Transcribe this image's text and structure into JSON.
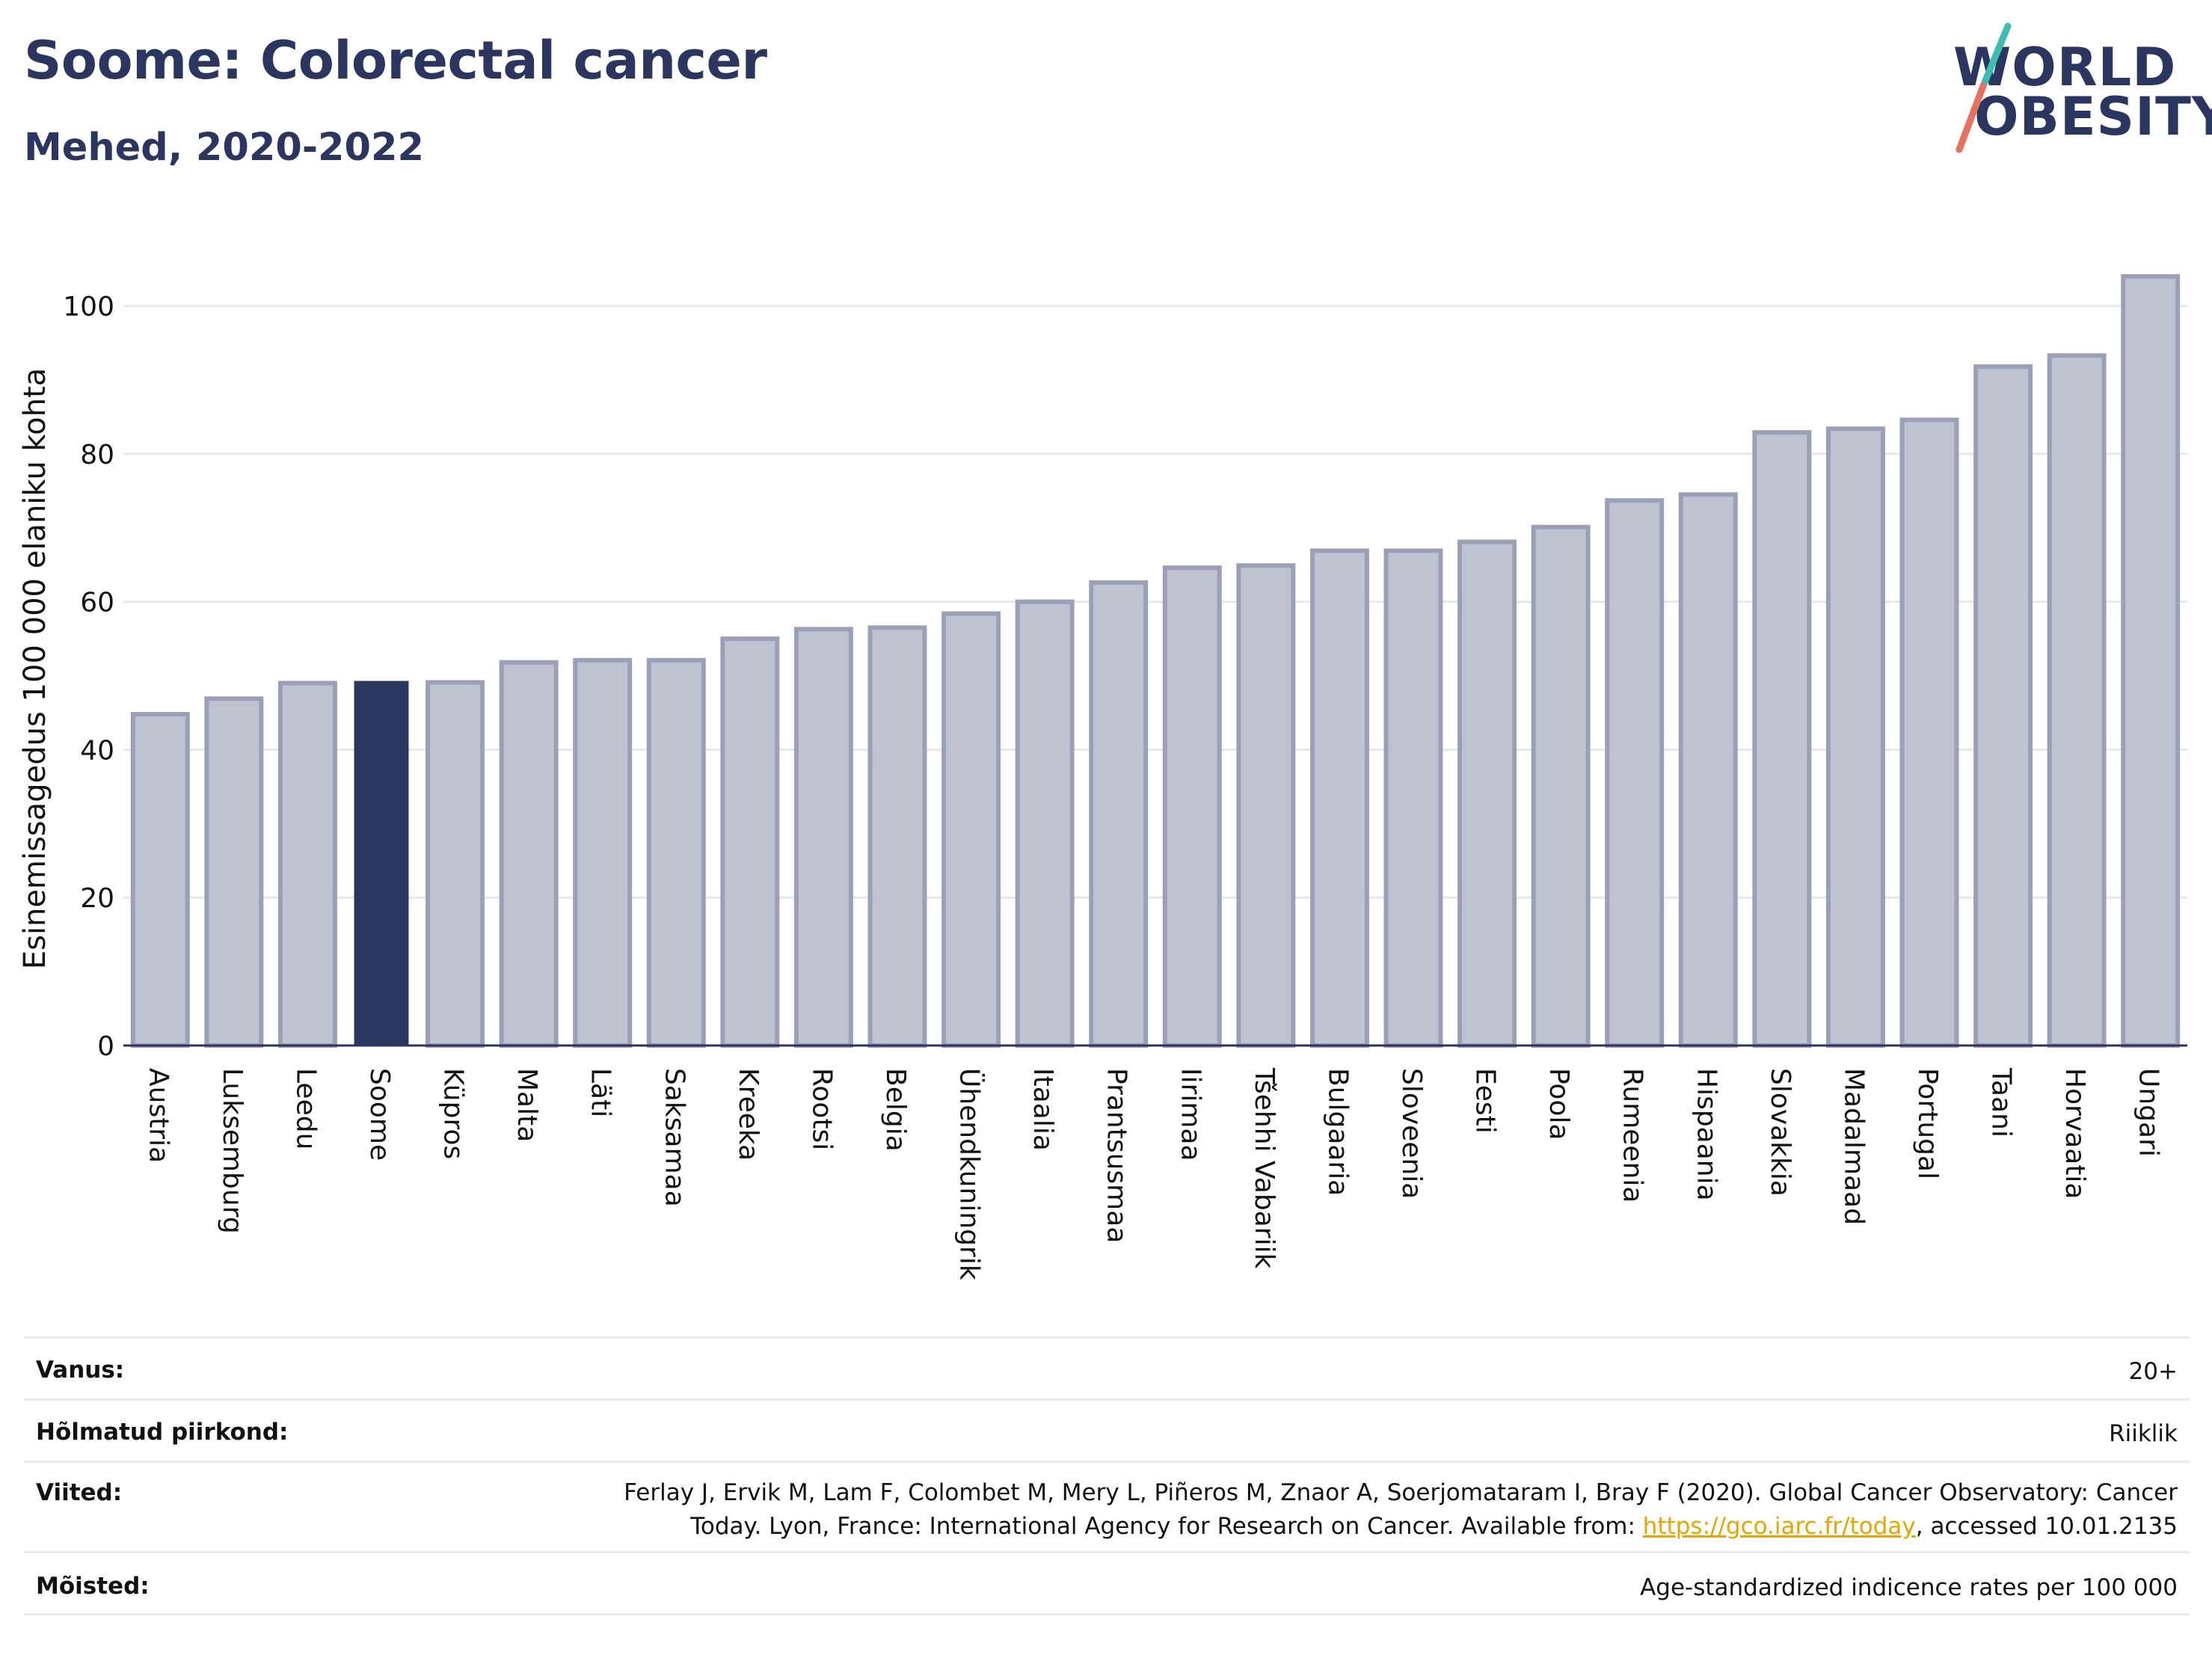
{
  "header": {
    "title": "Soome: Colorectal cancer",
    "subtitle": "Mehed, 2020-2022"
  },
  "logo": {
    "line1": "WORLD",
    "line2": "OBESITY"
  },
  "chart_data": {
    "type": "bar",
    "ylabel": "Esinemissagedus 100 000 elaniku kohta",
    "ylim": [
      0,
      108
    ],
    "yticks": [
      0,
      20,
      40,
      60,
      80,
      100
    ],
    "grid": true,
    "highlight": "Soome",
    "colors": {
      "bar": "#bfc3d0",
      "bar_edge": "#9aa0b8",
      "highlight": "#2a3560",
      "grid": "#e6e8ef",
      "axis": "#2a3560"
    },
    "categories": [
      "Austria",
      "Luksemburg",
      "Leedu",
      "Soome",
      "Küpros",
      "Malta",
      "Läti",
      "Saksamaa",
      "Kreeka",
      "Rootsi",
      "Belgia",
      "Ühendkuningrik",
      "Itaalia",
      "Prantsusmaa",
      "Iirimaa",
      "Tšehhi Vabariik",
      "Bulgaaria",
      "Sloveenia",
      "Eesti",
      "Poola",
      "Rumeenia",
      "Hispaania",
      "Slovakkia",
      "Madalmaad",
      "Portugal",
      "Taani",
      "Horvaatia",
      "Ungari"
    ],
    "values": [
      44.8,
      46.9,
      49.0,
      49.3,
      49.1,
      51.8,
      52.1,
      52.1,
      55.0,
      56.3,
      56.5,
      58.4,
      60.0,
      62.6,
      64.6,
      64.9,
      66.9,
      66.9,
      68.1,
      70.1,
      73.7,
      74.5,
      82.9,
      83.4,
      84.6,
      91.8,
      93.3,
      104.0
    ]
  },
  "meta": {
    "age_label": "Vanus:",
    "age_value": "20+",
    "region_label": "Hõlmatud piirkond:",
    "region_value": "Riiklik",
    "refs_label": "Viited:",
    "refs_line1": "Ferlay J, Ervik M, Lam F, Colombet M, Mery L, Piñeros M, Znaor A, Soerjomataram I, Bray F (2020). Global Cancer Observatory: Cancer",
    "refs_line2_pre": "Today. Lyon, France: International Agency for Research on Cancer. Available from: ",
    "refs_link": "https://gco.iarc.fr/today",
    "refs_line2_post": ", accessed 10.01.2135",
    "defs_label": "Mõisted:",
    "defs_value": "Age-standardized indicence rates per 100 000"
  }
}
